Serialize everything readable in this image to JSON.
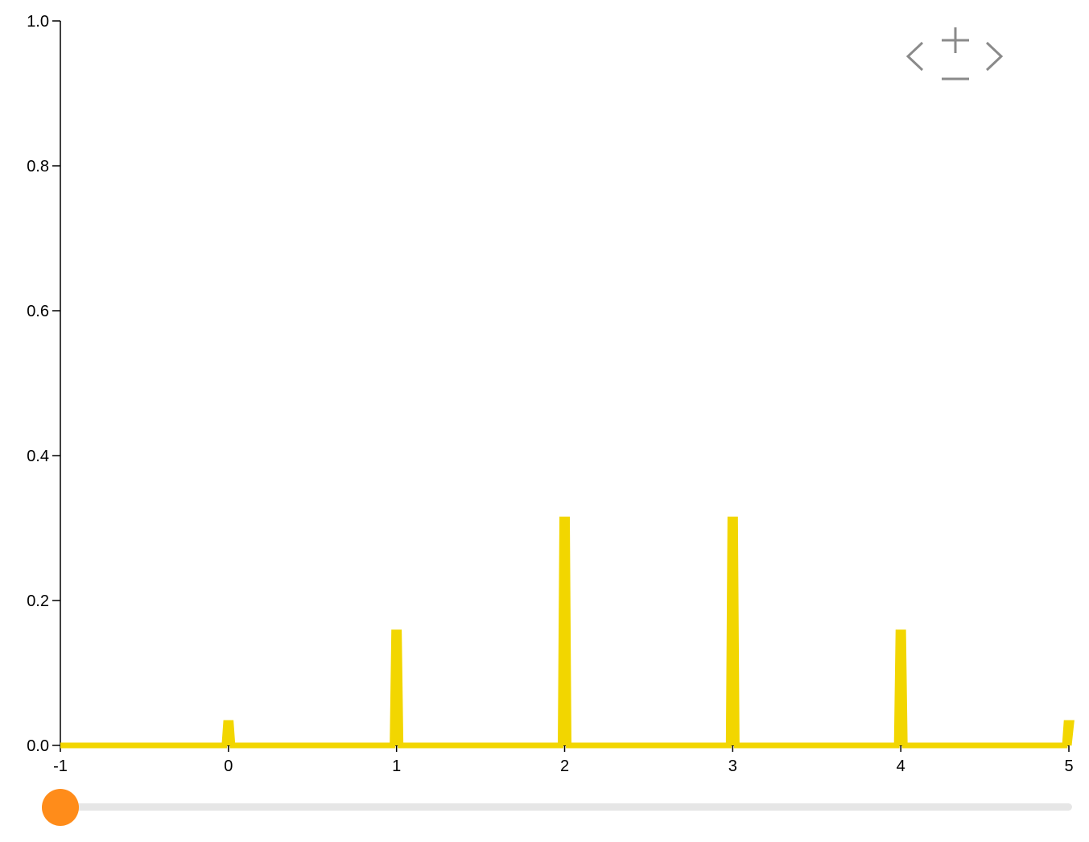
{
  "chart_data": {
    "type": "line",
    "title": "",
    "xlabel": "",
    "ylabel": "",
    "xlim": [
      -1,
      5
    ],
    "ylim": [
      0,
      1
    ],
    "x_ticks": [
      "-1",
      "0",
      "1",
      "2",
      "3",
      "4",
      "5"
    ],
    "y_ticks": [
      "0.0",
      "0.2",
      "0.4",
      "0.6",
      "0.8",
      "1.0"
    ],
    "series": [
      {
        "color": "#f2d600",
        "points": [
          {
            "x": 0,
            "y": 0.031
          },
          {
            "x": 1,
            "y": 0.156
          },
          {
            "x": 2,
            "y": 0.312
          },
          {
            "x": 3,
            "y": 0.312
          },
          {
            "x": 4,
            "y": 0.156
          },
          {
            "x": 5,
            "y": 0.031
          }
        ]
      }
    ],
    "grid": false
  },
  "controls": {
    "nav_icons": [
      "chevron-left-icon",
      "plus-icon",
      "minus-icon",
      "chevron-right-icon"
    ],
    "icon_color": "#8a8a8a"
  },
  "slider": {
    "value_fraction": 0.0,
    "thumb_color": "#ff8c1a",
    "track_color": "#e6e6e6"
  }
}
